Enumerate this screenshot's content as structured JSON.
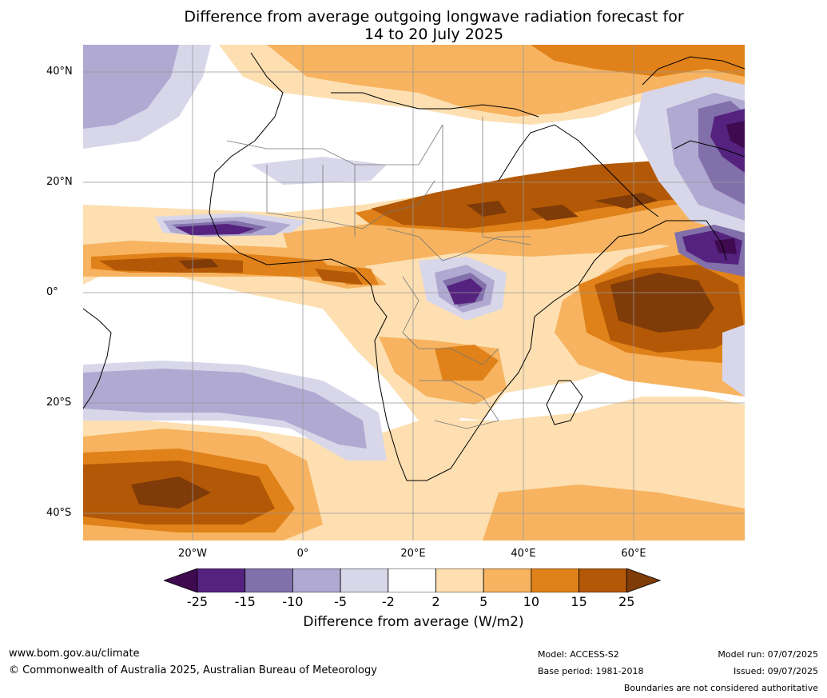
{
  "title": {
    "line1": "Difference from average outgoing longwave radiation forecast for",
    "line2": "14 to 20 July 2025"
  },
  "map": {
    "lat_labels": [
      "40°N",
      "20°N",
      "0°",
      "20°S",
      "40°S"
    ],
    "lon_labels": [
      "20°W",
      "0°",
      "20°E",
      "40°E",
      "60°E"
    ]
  },
  "colorbar": {
    "ticks": [
      "-25",
      "-15",
      "-10",
      "-5",
      "-2",
      "2",
      "5",
      "10",
      "15",
      "25"
    ],
    "colors": [
      "#3f0a4f",
      "#55237f",
      "#8170aa",
      "#b0a9d1",
      "#d8d7ea",
      "#ffffff",
      "#fddfb1",
      "#f7b35f",
      "#e08219",
      "#b35806",
      "#7f3b08"
    ],
    "label": "Difference from average (W/m2)"
  },
  "footer": {
    "website": "www.bom.gov.au/climate",
    "copyright": "© Commonwealth of Australia 2025, Australian Bureau of Meteorology",
    "model": "Model: ACCESS-S2",
    "base_period": "Base period: 1981-2018",
    "model_run": "Model run: 07/07/2025",
    "issued": "Issued: 09/07/2025",
    "disclaimer": "Boundaries are not considered authoritative"
  }
}
